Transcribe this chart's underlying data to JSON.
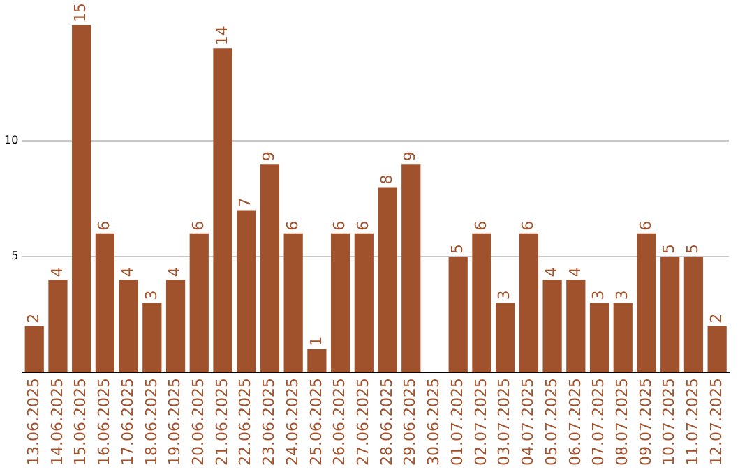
{
  "chart_data": {
    "type": "bar",
    "categories": [
      "13.06.2025",
      "14.06.2025",
      "15.06.2025",
      "16.06.2025",
      "17.06.2025",
      "18.06.2025",
      "19.06.2025",
      "20.06.2025",
      "21.06.2025",
      "22.06.2025",
      "23.06.2025",
      "24.06.2025",
      "25.06.2025",
      "26.06.2025",
      "27.06.2025",
      "28.06.2025",
      "29.06.2025",
      "30.06.2025",
      "01.07.2025",
      "02.07.2025",
      "03.07.2025",
      "04.07.2025",
      "05.07.2025",
      "06.07.2025",
      "07.07.2025",
      "08.07.2025",
      "09.07.2025",
      "10.07.2025",
      "11.07.2025",
      "12.07.2025"
    ],
    "values": [
      2,
      4,
      15,
      6,
      4,
      3,
      4,
      6,
      14,
      7,
      9,
      6,
      1,
      6,
      6,
      8,
      9,
      0,
      5,
      6,
      3,
      6,
      4,
      4,
      3,
      3,
      6,
      5,
      5,
      2
    ],
    "value_labels": [
      "2",
      "4",
      "15",
      "6",
      "4",
      "3",
      "4",
      "6",
      "14",
      "7",
      "9",
      "6",
      "1",
      "6",
      "6",
      "8",
      "9",
      null,
      "5",
      "6",
      "3",
      "6",
      "4",
      "4",
      "3",
      "3",
      "6",
      "5",
      "5",
      "2"
    ],
    "color": "#a0522d",
    "ylim": [
      0,
      15
    ],
    "yticks": [
      5,
      10
    ],
    "grid": "y",
    "legend": false
  }
}
